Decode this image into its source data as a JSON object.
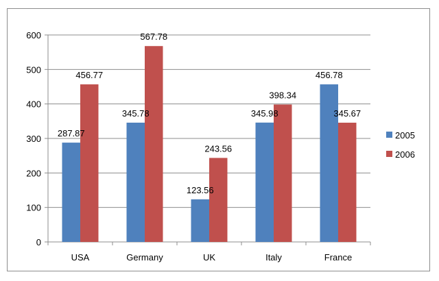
{
  "chart_data": {
    "type": "bar",
    "title": "",
    "xlabel": "",
    "ylabel": "",
    "categories": [
      "USA",
      "Germany",
      "UK",
      "Italy",
      "France"
    ],
    "series": [
      {
        "name": "2005",
        "color": "#4F81BD",
        "values": [
          287.87,
          345.78,
          123.56,
          345.98,
          456.78
        ]
      },
      {
        "name": "2006",
        "color": "#C0504D",
        "values": [
          456.77,
          567.78,
          243.56,
          398.34,
          345.67
        ]
      }
    ],
    "ylim": [
      0,
      600
    ],
    "yticks": [
      0,
      100,
      200,
      300,
      400,
      500,
      600
    ],
    "grid": true,
    "legend_position": "right"
  }
}
